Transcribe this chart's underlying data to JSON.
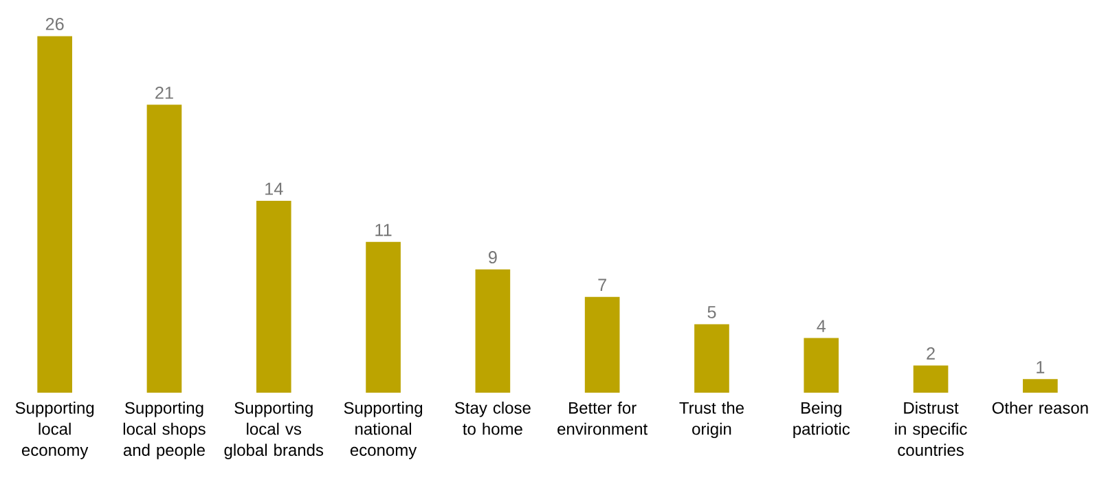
{
  "chart_data": {
    "type": "bar",
    "categories": [
      "Supporting local economy",
      "Supporting local shops and people",
      "Supporting local vs global brands",
      "Supporting national economy",
      "Stay close to home",
      "Better for environment",
      "Trust the origin",
      "Being patriotic",
      "Distrust in specific countries",
      "Other reason"
    ],
    "values": [
      26,
      21,
      14,
      11,
      9,
      7,
      5,
      4,
      2,
      1
    ],
    "color": "#bca400",
    "data_labels": true
  }
}
